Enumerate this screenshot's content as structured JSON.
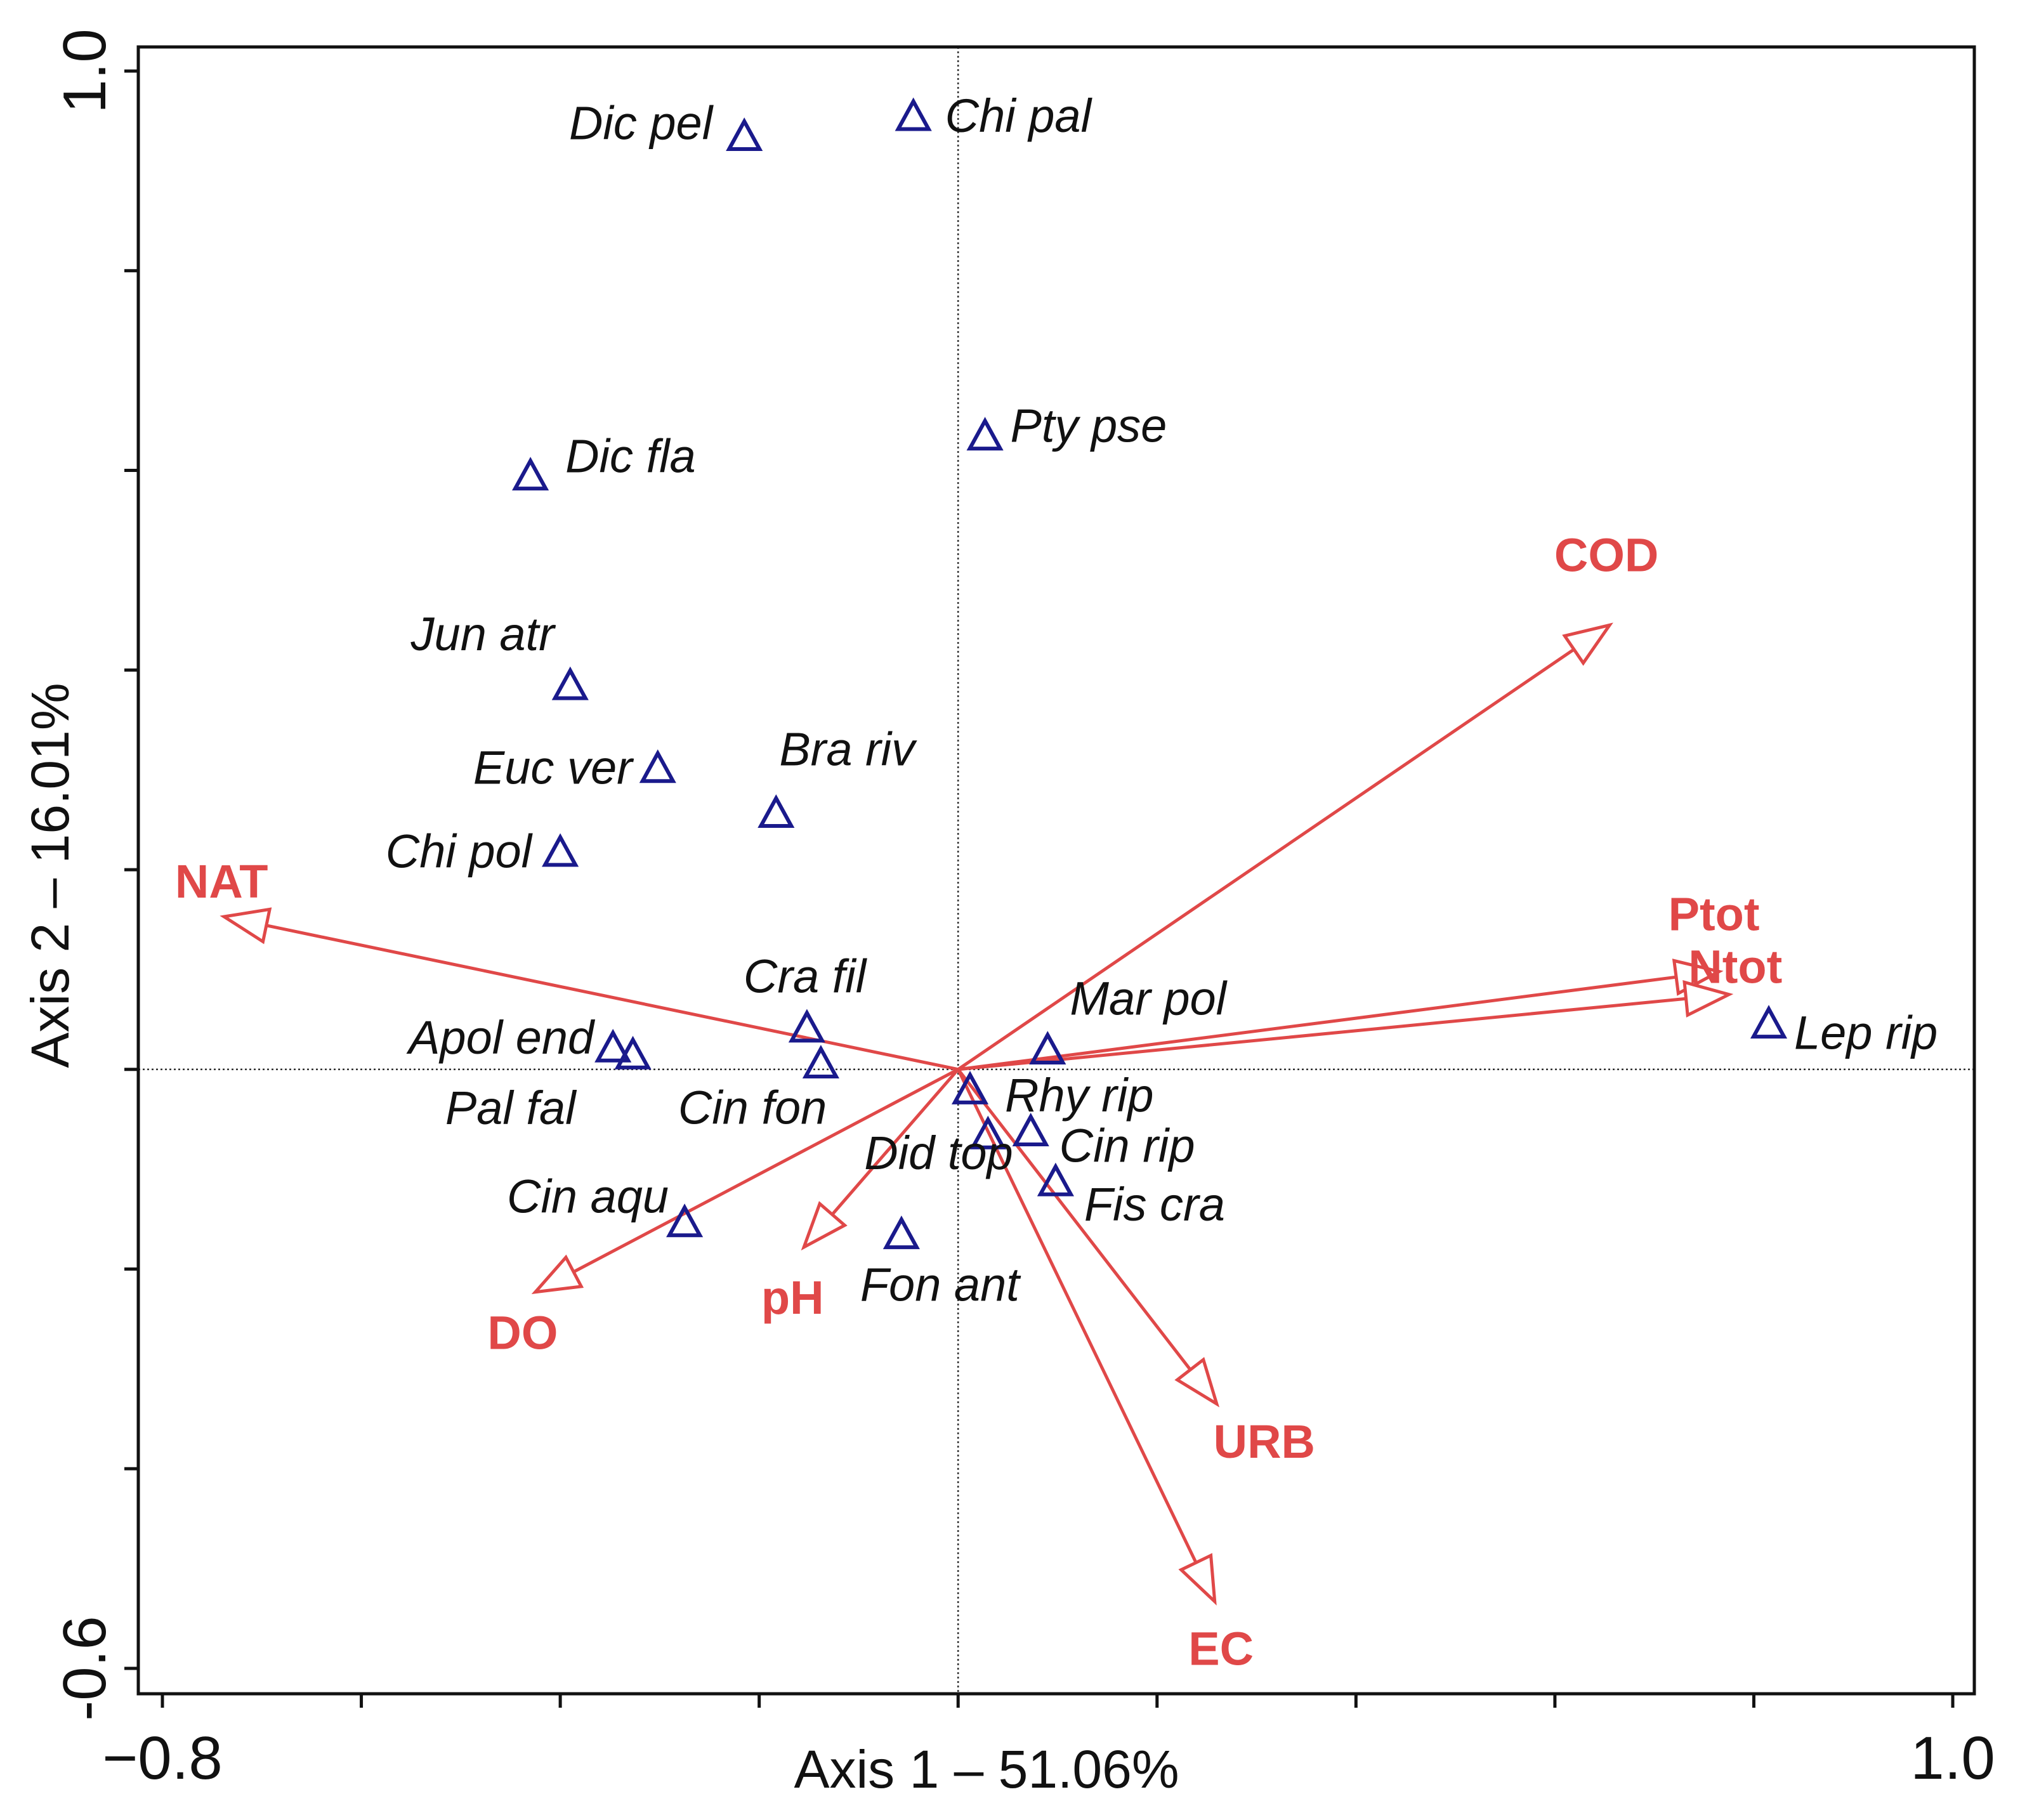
{
  "chart_data": {
    "type": "biplot",
    "xlabel": "Axis 1 – 51.06%",
    "ylabel": "Axis 2 – 16.01%",
    "xlim": [
      -0.8,
      1.0
    ],
    "ylim": [
      -0.6,
      1.0
    ],
    "x_tick_labels": [
      {
        "value": -0.8,
        "label": "−0.8"
      },
      {
        "value": 1.0,
        "label": "1.0"
      }
    ],
    "y_tick_labels": [
      {
        "value": 1.0,
        "label": "1.0"
      },
      {
        "value": -0.6,
        "label": "-0.6"
      }
    ],
    "x_ticks": [
      -0.8,
      -0.6,
      -0.4,
      -0.2,
      0.0,
      0.2,
      0.4,
      0.6,
      0.8,
      1.0
    ],
    "y_ticks": [
      -0.6,
      -0.4,
      -0.2,
      0.0,
      0.2,
      0.4,
      0.6,
      0.8,
      1.0
    ],
    "reference_lines": {
      "x": 0,
      "y": 0
    },
    "colors": {
      "species": "#1a1a8c",
      "arrows": "#e04848",
      "axis": "#111111"
    },
    "species": [
      {
        "name": "Chi pal",
        "x": -0.045,
        "y": 0.955
      },
      {
        "name": "Dic pel",
        "x": -0.215,
        "y": 0.935
      },
      {
        "name": "Pty pse",
        "x": 0.027,
        "y": 0.635
      },
      {
        "name": "Dic fla",
        "x": -0.43,
        "y": 0.595
      },
      {
        "name": "Jun atr",
        "x": -0.39,
        "y": 0.385
      },
      {
        "name": "Euc ver",
        "x": -0.302,
        "y": 0.302
      },
      {
        "name": "Bra riv",
        "x": -0.183,
        "y": 0.257
      },
      {
        "name": "Chi pol",
        "x": -0.4,
        "y": 0.218
      },
      {
        "name": "Cra fil",
        "x": -0.152,
        "y": 0.042
      },
      {
        "name": "Apol end",
        "x": -0.347,
        "y": 0.022
      },
      {
        "name": "Pal fal",
        "x": -0.327,
        "y": 0.015
      },
      {
        "name": "Cin fon",
        "x": -0.138,
        "y": 0.006
      },
      {
        "name": "Mar pol",
        "x": 0.09,
        "y": 0.02
      },
      {
        "name": "Lep rip",
        "x": 0.815,
        "y": 0.046
      },
      {
        "name": "Rhy rip",
        "x": 0.012,
        "y": -0.02
      },
      {
        "name": "Cin rip",
        "x": 0.073,
        "y": -0.062
      },
      {
        "name": "Did top",
        "x": 0.03,
        "y": -0.065
      },
      {
        "name": "Fis cra",
        "x": 0.098,
        "y": -0.112
      },
      {
        "name": "Cin aqu",
        "x": -0.275,
        "y": -0.153
      },
      {
        "name": "Fon ant",
        "x": -0.057,
        "y": -0.165
      }
    ],
    "env_vectors": [
      {
        "name": "COD",
        "x": 0.655,
        "y": 0.445
      },
      {
        "name": "Ptot",
        "x": 0.765,
        "y": 0.098
      },
      {
        "name": "Ntot",
        "x": 0.775,
        "y": 0.075
      },
      {
        "name": "NAT",
        "x": -0.738,
        "y": 0.153
      },
      {
        "name": "DO",
        "x": -0.425,
        "y": -0.223
      },
      {
        "name": "pH",
        "x": -0.155,
        "y": -0.178
      },
      {
        "name": "URB",
        "x": 0.26,
        "y": -0.335
      },
      {
        "name": "EC",
        "x": 0.258,
        "y": -0.533
      }
    ]
  }
}
